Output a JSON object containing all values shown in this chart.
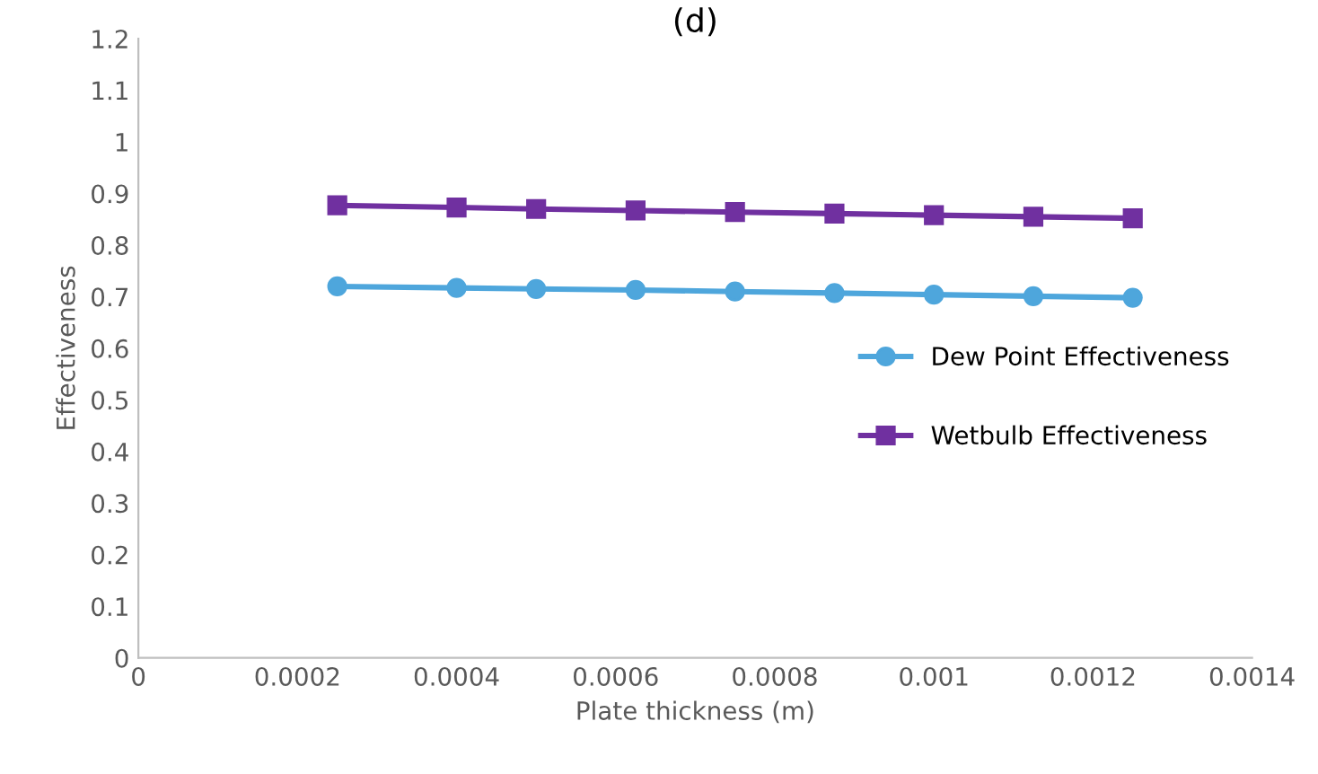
{
  "chart_data": {
    "type": "line",
    "title": "(d)",
    "xlabel": "Plate thickness (m)",
    "ylabel": "Effectiveness",
    "x": [
      0.00025,
      0.0004,
      0.0005,
      0.000625,
      0.00075,
      0.000875,
      0.001,
      0.001125,
      0.00125
    ],
    "series": [
      {
        "name": "Dew Point Effectiveness",
        "color": "#4ea6dc",
        "marker": "circle",
        "values": [
          0.72,
          0.717,
          0.715,
          0.713,
          0.71,
          0.707,
          0.704,
          0.701,
          0.698
        ]
      },
      {
        "name": "Wetbulb Effectiveness",
        "color": "#7030a0",
        "marker": "square",
        "values": [
          0.877,
          0.873,
          0.87,
          0.867,
          0.864,
          0.861,
          0.858,
          0.855,
          0.852
        ]
      }
    ],
    "xlim": [
      0,
      0.0014
    ],
    "xticks": [
      0,
      0.0002,
      0.0004,
      0.0006,
      0.0008,
      0.001,
      0.0012,
      0.0014
    ],
    "ylim": [
      0,
      1.2
    ],
    "yticks": [
      0,
      0.1,
      0.2,
      0.3,
      0.4,
      0.5,
      0.6,
      0.7,
      0.8,
      0.9,
      1,
      1.1,
      1.2
    ],
    "grid": false,
    "legend": "right",
    "line_style": "solid"
  }
}
